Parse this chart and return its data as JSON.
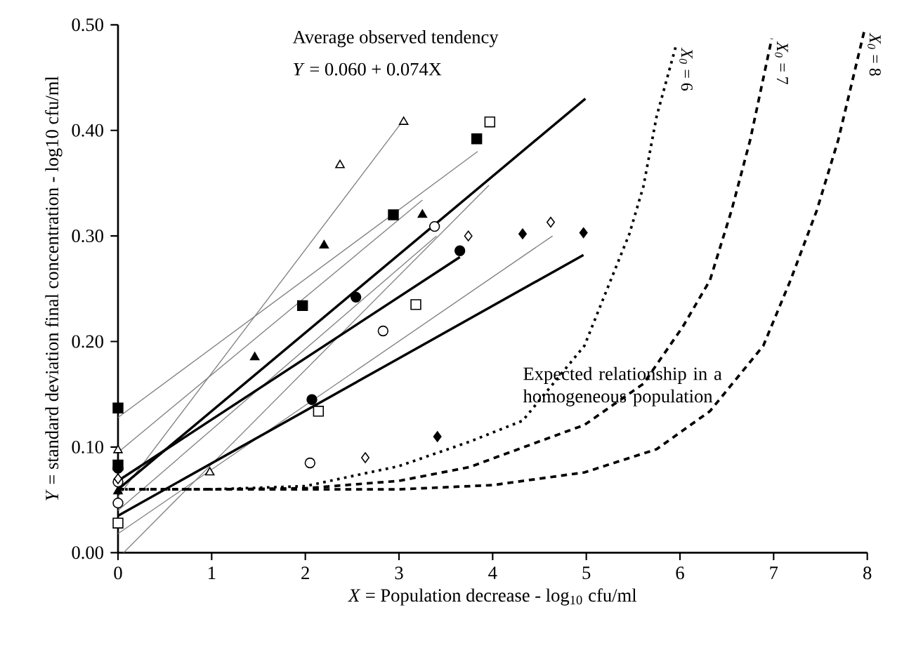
{
  "chart_data": {
    "type": "scatter",
    "xlabel": "*X* = Population decrease - log$_{10}$ cfu/ml",
    "ylabel": "*Y* = standard deviation final concentration - log10 cfu/ml",
    "xlim": [
      0,
      8
    ],
    "ylim": [
      0,
      0.5
    ],
    "xticks": [
      0,
      1,
      2,
      3,
      4,
      5,
      6,
      7,
      8
    ],
    "yticks": [
      {
        "value": 0,
        "label": "0.00"
      },
      {
        "value": 0.1,
        "label": "0.10"
      },
      {
        "value": 0.2,
        "label": "0.20"
      },
      {
        "value": 0.3,
        "label": "0.30"
      },
      {
        "value": 0.4,
        "label": "0.40"
      },
      {
        "value": 0.5,
        "label": "0.50"
      }
    ],
    "annotations": [
      "Average observed tendency",
      "*Y*  = 0.060 + 0.074X",
      "Expected relationship in a homogeneous population"
    ],
    "series": [
      {
        "type": "line",
        "color": "#808080",
        "line_style": "solid",
        "x": [
          0,
          3.84
        ],
        "values": [
          0.128,
          0.38
        ]
      },
      {
        "type": "line",
        "color": "#808080",
        "line_style": "solid",
        "x": [
          0,
          3.05
        ],
        "values": [
          0.053,
          0.41
        ]
      },
      {
        "type": "line",
        "color": "#808080",
        "line_style": "solid",
        "x": [
          0,
          3.25
        ],
        "values": [
          0.095,
          0.334
        ]
      },
      {
        "type": "line",
        "color": "#808080",
        "line_style": "solid",
        "x": [
          0.06,
          3.96
        ],
        "values": [
          0,
          0.348
        ]
      },
      {
        "type": "line",
        "color": "#808080",
        "line_style": "solid",
        "x": [
          0,
          3.4
        ],
        "values": [
          0.04,
          0.3
        ]
      },
      {
        "type": "line",
        "color": "#808080",
        "line_style": "solid",
        "x": [
          0,
          4.64
        ],
        "values": [
          0.018,
          0.3
        ]
      },
      {
        "type": "line",
        "color": "#000000",
        "line_style": "solid",
        "x": [
          0,
          3.65
        ],
        "values": [
          0.068,
          0.28
        ]
      },
      {
        "type": "line",
        "color": "#000000",
        "line_style": "solid",
        "x": [
          0,
          4.97
        ],
        "values": [
          0.035,
          0.282
        ]
      },
      {
        "type": "line",
        "color": "#000000",
        "line_style": "solid",
        "x": [
          0,
          4.99
        ],
        "values": [
          0.06,
          0.43
        ]
      },
      {
        "type": "line",
        "name": "*X$_{0}$* = 6",
        "color": "#000000",
        "line_style": "dotted",
        "x": [
          0,
          1,
          2,
          3,
          3.75,
          4.32,
          4.98,
          5.26,
          5.46,
          5.61,
          5.75,
          5.96
        ],
        "values": [
          0.06,
          0.06,
          0.063,
          0.082,
          0.105,
          0.125,
          0.196,
          0.258,
          0.302,
          0.347,
          0.413,
          0.481
        ]
      },
      {
        "type": "line",
        "name": "*X$_{0}$* = 7",
        "color": "#000000",
        "line_style": "dashed",
        "x": [
          0,
          1,
          2,
          3,
          3.75,
          4.98,
          5.61,
          6.03,
          6.32,
          6.55,
          6.75,
          6.98
        ],
        "values": [
          0.06,
          0.06,
          0.061,
          0.068,
          0.081,
          0.121,
          0.16,
          0.214,
          0.258,
          0.324,
          0.391,
          0.487
        ]
      },
      {
        "type": "line",
        "name": "*X$_{0}$* = 8",
        "color": "#000000",
        "line_style": "dashed",
        "x": [
          0,
          1,
          2,
          3,
          4,
          4.98,
          5.75,
          6.32,
          6.89,
          7.18,
          7.46,
          7.69,
          7.97
        ],
        "values": [
          0.06,
          0.06,
          0.06,
          0.06,
          0.064,
          0.076,
          0.098,
          0.134,
          0.196,
          0.258,
          0.324,
          0.391,
          0.495
        ]
      },
      {
        "marker": "square",
        "color": "#000000",
        "x": [
          0,
          0,
          1.97,
          2.94,
          3.83
        ],
        "values": [
          0.137,
          0.083,
          0.234,
          0.32,
          0.392
        ]
      },
      {
        "marker": "square",
        "color": "#ffffff",
        "x": [
          0,
          2.14,
          3.18,
          3.97
        ],
        "values": [
          0.028,
          0.134,
          0.235,
          0.408
        ]
      },
      {
        "marker": "triangle",
        "color": "#000000",
        "x": [
          0,
          1.46,
          2.2,
          3.25
        ],
        "values": [
          0.058,
          0.185,
          0.291,
          0.32
        ]
      },
      {
        "marker": "triangle",
        "color": "#ffffff",
        "x": [
          0,
          0.98,
          2.37,
          3.05
        ],
        "values": [
          0.097,
          0.076,
          0.367,
          0.408
        ]
      },
      {
        "marker": "circle",
        "color": "#000000",
        "x": [
          0,
          2.07,
          2.54,
          3.65
        ],
        "values": [
          0.08,
          0.145,
          0.242,
          0.286
        ]
      },
      {
        "marker": "circle",
        "color": "#ffffff",
        "x": [
          0,
          0,
          2.05,
          2.83,
          3.38
        ],
        "values": [
          0.047,
          0.067,
          0.085,
          0.21,
          0.309
        ]
      },
      {
        "marker": "diamond",
        "color": "#000000",
        "x": [
          3.41,
          4.32,
          4.97
        ],
        "values": [
          0.11,
          0.302,
          0.303
        ]
      },
      {
        "marker": "diamond",
        "color": "#ffffff",
        "x": [
          0,
          2.64,
          3.74,
          4.62
        ],
        "values": [
          0.07,
          0.09,
          0.3,
          0.313
        ]
      }
    ]
  }
}
